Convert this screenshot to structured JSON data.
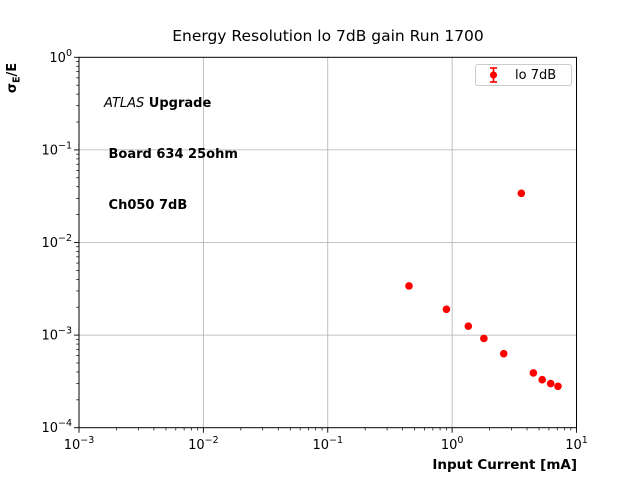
{
  "figure": {
    "title": "Energy Resolution lo 7dB gain Run 1700",
    "background": "#ffffff"
  },
  "annotation": {
    "line1_italic": "ATLAS",
    "line1_bold": " Upgrade",
    "line2": " Board 634 25ohm",
    "line3": " Ch050 7dB"
  },
  "legend": {
    "entries": [
      {
        "label": "lo 7dB",
        "color": "#ff0000",
        "marker": "errorbar-circle"
      }
    ],
    "border_color": "#cccccc",
    "position": "upper right"
  },
  "axes": {
    "xlabel": "Input Current [mA]",
    "ylabel": {
      "sigma": "σ",
      "sub": "E",
      "rest": "/E"
    },
    "x_scale": "log",
    "y_scale": "log",
    "x_tick_exponents": [
      -3,
      -2,
      -1,
      0,
      1
    ],
    "y_tick_exponents": [
      0,
      -1,
      -2,
      -3,
      -4
    ],
    "grid_color": "#b0b0b0",
    "spine_color": "#000000",
    "tick_label_color": "#000000"
  },
  "chart_data": {
    "type": "scatter",
    "title": "Energy Resolution lo 7dB gain Run 1700",
    "xlabel": "Input Current [mA]",
    "ylabel": "sigma_E/E",
    "x_scale": "log",
    "y_scale": "log",
    "xlim": [
      0.001,
      10
    ],
    "ylim": [
      0.0001,
      1
    ],
    "grid": true,
    "legend_position": "upper right",
    "series": [
      {
        "name": "lo 7dB",
        "color": "#ff0000",
        "marker": "circle-with-errorbar",
        "points": [
          [
            0.45,
            0.0034
          ],
          [
            0.9,
            0.0019
          ],
          [
            1.35,
            0.00125
          ],
          [
            1.8,
            0.00092
          ],
          [
            2.6,
            0.00063
          ],
          [
            3.6,
            0.034
          ],
          [
            4.5,
            0.00039
          ],
          [
            5.3,
            0.00033
          ],
          [
            6.2,
            0.0003
          ],
          [
            7.1,
            0.00028
          ]
        ]
      }
    ]
  }
}
